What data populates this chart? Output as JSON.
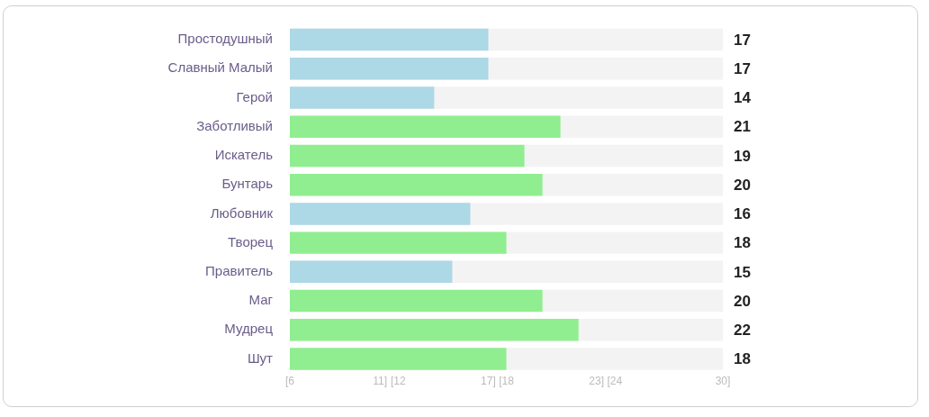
{
  "chart_data": {
    "type": "bar",
    "orientation": "horizontal",
    "categories": [
      "Простодушный",
      "Славный Малый",
      "Герой",
      "Заботливый",
      "Искатель",
      "Бунтарь",
      "Любовник",
      "Творец",
      "Правитель",
      "Маг",
      "Мудрец",
      "Шут"
    ],
    "values": [
      17,
      17,
      14,
      21,
      19,
      20,
      16,
      18,
      15,
      20,
      22,
      18
    ],
    "colors": [
      "#add8e6",
      "#add8e6",
      "#add8e6",
      "#90ee90",
      "#90ee90",
      "#90ee90",
      "#add8e6",
      "#90ee90",
      "#add8e6",
      "#90ee90",
      "#90ee90",
      "#90ee90"
    ],
    "xlim": [
      6,
      30
    ],
    "xticks": [
      {
        "value": 6,
        "label": "[6"
      },
      {
        "value": 11,
        "label": "11]"
      },
      {
        "value": 12,
        "label": "[12"
      },
      {
        "value": 17,
        "label": "17]"
      },
      {
        "value": 18,
        "label": "[18"
      },
      {
        "value": 23,
        "label": "23]"
      },
      {
        "value": 24,
        "label": "[24"
      },
      {
        "value": 30,
        "label": "30]"
      }
    ],
    "data_labels": true,
    "grid": false,
    "legend": false
  }
}
